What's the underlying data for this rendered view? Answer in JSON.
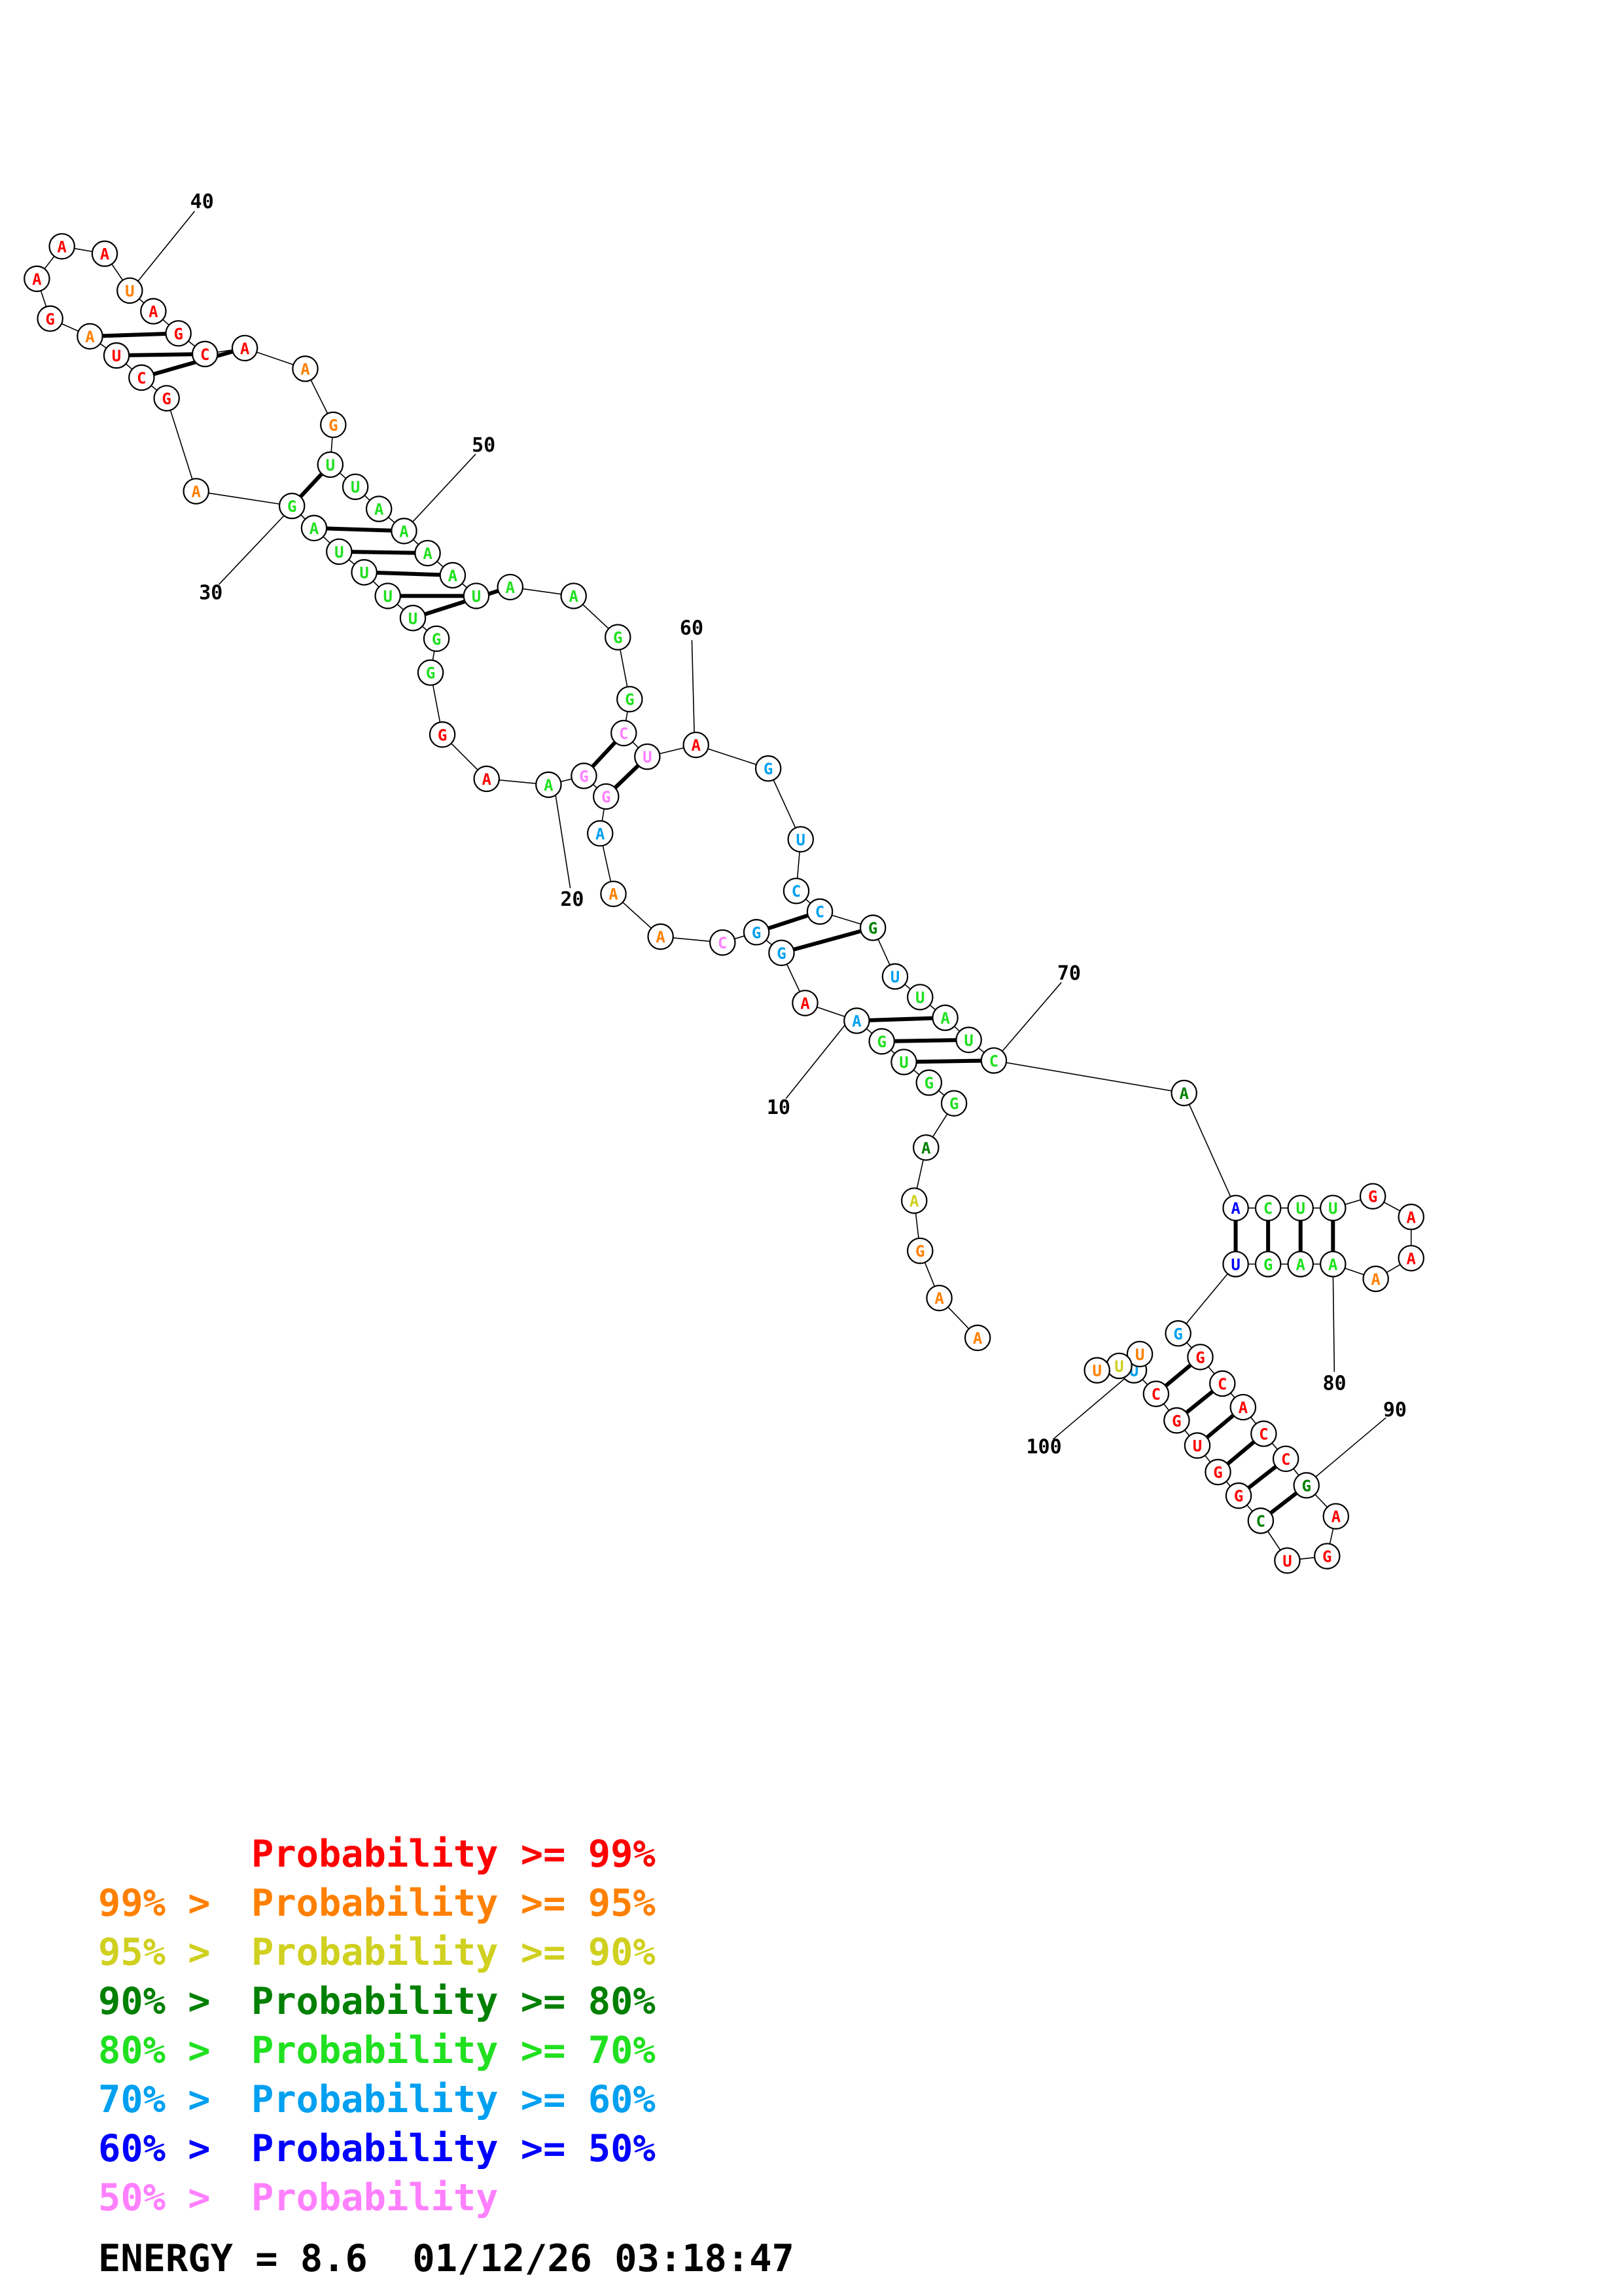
{
  "colors": {
    "p99": "#ff0000",
    "p95": "#ff8000",
    "p90": "#d0d020",
    "p80": "#008000",
    "p70": "#20e020",
    "p60": "#00a0f0",
    "p50": "#0000ff",
    "plow": "#ff80ff"
  },
  "nucleotides": [
    {
      "n": 1,
      "b": "A",
      "c": "p95"
    },
    {
      "n": 2,
      "b": "A",
      "c": "p95"
    },
    {
      "n": 3,
      "b": "G",
      "c": "p95"
    },
    {
      "n": 4,
      "b": "A",
      "c": "p90"
    },
    {
      "n": 5,
      "b": "A",
      "c": "p80"
    },
    {
      "n": 6,
      "b": "G",
      "c": "p70"
    },
    {
      "n": 7,
      "b": "G",
      "c": "p70"
    },
    {
      "n": 8,
      "b": "U",
      "c": "p70"
    },
    {
      "n": 9,
      "b": "G",
      "c": "p70"
    },
    {
      "n": 10,
      "b": "A",
      "c": "p60"
    },
    {
      "n": 11,
      "b": "A",
      "c": "p99"
    },
    {
      "n": 12,
      "b": "G",
      "c": "p60"
    },
    {
      "n": 13,
      "b": "G",
      "c": "p60"
    },
    {
      "n": 14,
      "b": "C",
      "c": "plow"
    },
    {
      "n": 15,
      "b": "A",
      "c": "p95"
    },
    {
      "n": 16,
      "b": "A",
      "c": "p95"
    },
    {
      "n": 17,
      "b": "A",
      "c": "p60"
    },
    {
      "n": 18,
      "b": "G",
      "c": "plow"
    },
    {
      "n": 19,
      "b": "G",
      "c": "plow"
    },
    {
      "n": 20,
      "b": "A",
      "c": "p70"
    },
    {
      "n": 21,
      "b": "A",
      "c": "p99"
    },
    {
      "n": 22,
      "b": "G",
      "c": "p99"
    },
    {
      "n": 23,
      "b": "G",
      "c": "p70"
    },
    {
      "n": 24,
      "b": "G",
      "c": "p70"
    },
    {
      "n": 25,
      "b": "U",
      "c": "p70"
    },
    {
      "n": 26,
      "b": "U",
      "c": "p70"
    },
    {
      "n": 27,
      "b": "U",
      "c": "p70"
    },
    {
      "n": 28,
      "b": "U",
      "c": "p70"
    },
    {
      "n": 29,
      "b": "A",
      "c": "p70"
    },
    {
      "n": 30,
      "b": "G",
      "c": "p70"
    },
    {
      "n": 31,
      "b": "A",
      "c": "p95"
    },
    {
      "n": 32,
      "b": "G",
      "c": "p99"
    },
    {
      "n": 33,
      "b": "C",
      "c": "p99"
    },
    {
      "n": 34,
      "b": "U",
      "c": "p99"
    },
    {
      "n": 35,
      "b": "A",
      "c": "p95"
    },
    {
      "n": 36,
      "b": "G",
      "c": "p99"
    },
    {
      "n": 37,
      "b": "A",
      "c": "p99"
    },
    {
      "n": 38,
      "b": "A",
      "c": "p99"
    },
    {
      "n": 39,
      "b": "A",
      "c": "p99"
    },
    {
      "n": 40,
      "b": "U",
      "c": "p95"
    },
    {
      "n": 41,
      "b": "A",
      "c": "p99"
    },
    {
      "n": 42,
      "b": "G",
      "c": "p99"
    },
    {
      "n": 43,
      "b": "C",
      "c": "p99"
    },
    {
      "n": 44,
      "b": "A",
      "c": "p99"
    },
    {
      "n": 45,
      "b": "A",
      "c": "p95"
    },
    {
      "n": 46,
      "b": "G",
      "c": "p95"
    },
    {
      "n": 47,
      "b": "U",
      "c": "p70"
    },
    {
      "n": 48,
      "b": "U",
      "c": "p70"
    },
    {
      "n": 49,
      "b": "A",
      "c": "p70"
    },
    {
      "n": 50,
      "b": "A",
      "c": "p70"
    },
    {
      "n": 51,
      "b": "A",
      "c": "p70"
    },
    {
      "n": 52,
      "b": "A",
      "c": "p70"
    },
    {
      "n": 53,
      "b": "U",
      "c": "p70"
    },
    {
      "n": 54,
      "b": "A",
      "c": "p70"
    },
    {
      "n": 55,
      "b": "A",
      "c": "p70"
    },
    {
      "n": 56,
      "b": "G",
      "c": "p70"
    },
    {
      "n": 57,
      "b": "G",
      "c": "p70"
    },
    {
      "n": 58,
      "b": "C",
      "c": "plow"
    },
    {
      "n": 59,
      "b": "U",
      "c": "plow"
    },
    {
      "n": 60,
      "b": "A",
      "c": "p99"
    },
    {
      "n": 61,
      "b": "G",
      "c": "p60"
    },
    {
      "n": 62,
      "b": "U",
      "c": "p60"
    },
    {
      "n": 63,
      "b": "C",
      "c": "p60"
    },
    {
      "n": 64,
      "b": "C",
      "c": "p60"
    },
    {
      "n": 65,
      "b": "G",
      "c": "p80"
    },
    {
      "n": 66,
      "b": "U",
      "c": "p60"
    },
    {
      "n": 67,
      "b": "U",
      "c": "p70"
    },
    {
      "n": 68,
      "b": "A",
      "c": "p70"
    },
    {
      "n": 69,
      "b": "U",
      "c": "p70"
    },
    {
      "n": 70,
      "b": "C",
      "c": "p70"
    },
    {
      "n": 71,
      "b": "A",
      "c": "p80"
    },
    {
      "n": 72,
      "b": "A",
      "c": "p50"
    },
    {
      "n": 73,
      "b": "C",
      "c": "p70"
    },
    {
      "n": 74,
      "b": "U",
      "c": "p70"
    },
    {
      "n": 75,
      "b": "U",
      "c": "p70"
    },
    {
      "n": 76,
      "b": "G",
      "c": "p99"
    },
    {
      "n": 77,
      "b": "A",
      "c": "p99"
    },
    {
      "n": 78,
      "b": "A",
      "c": "p99"
    },
    {
      "n": 79,
      "b": "A",
      "c": "p95"
    },
    {
      "n": 80,
      "b": "A",
      "c": "p70"
    },
    {
      "n": 81,
      "b": "A",
      "c": "p70"
    },
    {
      "n": 82,
      "b": "G",
      "c": "p70"
    },
    {
      "n": 83,
      "b": "U",
      "c": "p50"
    },
    {
      "n": 84,
      "b": "G",
      "c": "p60"
    },
    {
      "n": 85,
      "b": "G",
      "c": "p99"
    },
    {
      "n": 86,
      "b": "C",
      "c": "p99"
    },
    {
      "n": 87,
      "b": "A",
      "c": "p99"
    },
    {
      "n": 88,
      "b": "C",
      "c": "p99"
    },
    {
      "n": 89,
      "b": "C",
      "c": "p99"
    },
    {
      "n": 90,
      "b": "G",
      "c": "p80"
    },
    {
      "n": 91,
      "b": "A",
      "c": "p99"
    },
    {
      "n": 92,
      "b": "G",
      "c": "p99"
    },
    {
      "n": 93,
      "b": "U",
      "c": "p99"
    },
    {
      "n": 94,
      "b": "C",
      "c": "p80"
    },
    {
      "n": 95,
      "b": "G",
      "c": "p99"
    },
    {
      "n": 96,
      "b": "G",
      "c": "p99"
    },
    {
      "n": 97,
      "b": "U",
      "c": "p99"
    },
    {
      "n": 98,
      "b": "G",
      "c": "p99"
    },
    {
      "n": 99,
      "b": "C",
      "c": "p99"
    },
    {
      "n": 100,
      "b": "U",
      "c": "p60"
    },
    {
      "n": 101,
      "b": "U",
      "c": "p95"
    },
    {
      "n": 102,
      "b": "U",
      "c": "p90"
    },
    {
      "n": 103,
      "b": "U",
      "c": "p95"
    }
  ],
  "pairs": [
    [
      8,
      70
    ],
    [
      9,
      69
    ],
    [
      10,
      68
    ],
    [
      12,
      65
    ],
    [
      13,
      64
    ],
    [
      18,
      59
    ],
    [
      19,
      58
    ],
    [
      25,
      54
    ],
    [
      26,
      53
    ],
    [
      27,
      52
    ],
    [
      28,
      51
    ],
    [
      29,
      50
    ],
    [
      30,
      47
    ],
    [
      33,
      44
    ],
    [
      34,
      43
    ],
    [
      35,
      42
    ],
    [
      72,
      83
    ],
    [
      73,
      82
    ],
    [
      74,
      81
    ],
    [
      75,
      80
    ],
    [
      85,
      99
    ],
    [
      86,
      98
    ],
    [
      87,
      97
    ],
    [
      88,
      96
    ],
    [
      89,
      95
    ],
    [
      90,
      94
    ]
  ],
  "number_labels": [
    "10",
    "20",
    "30",
    "40",
    "50",
    "60",
    "70",
    "80",
    "90",
    "100"
  ],
  "legend": [
    {
      "prefix": "",
      "text": "Probability >= 99%",
      "c": "p99"
    },
    {
      "prefix": "99% > ",
      "text": "Probability >= 95%",
      "c": "p95"
    },
    {
      "prefix": "95% > ",
      "text": "Probability >= 90%",
      "c": "p90"
    },
    {
      "prefix": "90% > ",
      "text": "Probability >= 80%",
      "c": "p80"
    },
    {
      "prefix": "80% > ",
      "text": "Probability >= 70%",
      "c": "p70"
    },
    {
      "prefix": "70% > ",
      "text": "Probability >= 60%",
      "c": "p60"
    },
    {
      "prefix": "60% > ",
      "text": "Probability >= 50%",
      "c": "p50"
    },
    {
      "prefix": "50% > ",
      "text": "Probability",
      "c": "plow"
    }
  ],
  "energy_text": "ENERGY = 8.6  01/12/26 03:18:47"
}
